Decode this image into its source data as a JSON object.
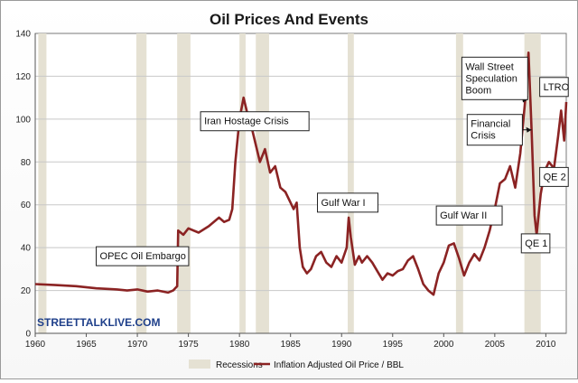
{
  "chart_data": {
    "type": "line",
    "title": "Oil Prices And Events",
    "xlabel": "",
    "ylabel": "",
    "xlim": [
      1960,
      2012
    ],
    "ylim": [
      0,
      140
    ],
    "x_ticks": [
      1960,
      1965,
      1970,
      1975,
      1980,
      1985,
      1990,
      1995,
      2000,
      2005,
      2010
    ],
    "y_ticks": [
      0,
      20,
      40,
      60,
      80,
      100,
      120,
      140
    ],
    "grid": {
      "x": false,
      "y": true
    },
    "legend": {
      "placement": "bottom",
      "items": [
        "Recessions",
        "Inflation Adjusted Oil Price / BBL"
      ]
    },
    "recessions": [
      [
        1960.3,
        1961.1
      ],
      [
        1969.9,
        1970.9
      ],
      [
        1973.9,
        1975.2
      ],
      [
        1980.0,
        1980.6
      ],
      [
        1981.6,
        1982.9
      ],
      [
        1990.6,
        1991.2
      ],
      [
        2001.2,
        2001.9
      ],
      [
        2007.9,
        2009.5
      ]
    ],
    "series": [
      {
        "name": "Inflation Adjusted Oil Price / BBL",
        "color": "#8b2323",
        "points": [
          [
            1960,
            23
          ],
          [
            1962,
            22.5
          ],
          [
            1964,
            22
          ],
          [
            1966,
            21
          ],
          [
            1968,
            20.5
          ],
          [
            1969,
            20
          ],
          [
            1970,
            20.5
          ],
          [
            1971,
            19.5
          ],
          [
            1972,
            20
          ],
          [
            1973,
            19
          ],
          [
            1973.5,
            20
          ],
          [
            1973.9,
            22
          ],
          [
            1974.0,
            48
          ],
          [
            1974.5,
            46
          ],
          [
            1975,
            49
          ],
          [
            1976,
            47
          ],
          [
            1977,
            50
          ],
          [
            1978,
            54
          ],
          [
            1978.5,
            52
          ],
          [
            1979,
            53
          ],
          [
            1979.3,
            58
          ],
          [
            1979.6,
            80
          ],
          [
            1980.0,
            100
          ],
          [
            1980.4,
            110
          ],
          [
            1980.8,
            102
          ],
          [
            1981.2,
            96
          ],
          [
            1981.5,
            90
          ],
          [
            1982,
            80
          ],
          [
            1982.5,
            86
          ],
          [
            1983,
            75
          ],
          [
            1983.5,
            78
          ],
          [
            1984,
            68
          ],
          [
            1984.5,
            66
          ],
          [
            1985,
            61
          ],
          [
            1985.3,
            58
          ],
          [
            1985.6,
            61
          ],
          [
            1985.9,
            40
          ],
          [
            1986.2,
            31
          ],
          [
            1986.6,
            28
          ],
          [
            1987,
            30
          ],
          [
            1987.5,
            36
          ],
          [
            1988,
            38
          ],
          [
            1988.5,
            33
          ],
          [
            1989,
            31
          ],
          [
            1989.5,
            36
          ],
          [
            1990,
            33
          ],
          [
            1990.5,
            40
          ],
          [
            1990.7,
            54
          ],
          [
            1990.9,
            45
          ],
          [
            1991.3,
            32
          ],
          [
            1991.7,
            36
          ],
          [
            1992,
            33
          ],
          [
            1992.5,
            36
          ],
          [
            1993,
            33
          ],
          [
            1993.5,
            29
          ],
          [
            1994,
            25
          ],
          [
            1994.5,
            28
          ],
          [
            1995,
            27
          ],
          [
            1995.5,
            29
          ],
          [
            1996,
            30
          ],
          [
            1996.5,
            34
          ],
          [
            1997,
            36
          ],
          [
            1997.5,
            30
          ],
          [
            1998,
            23
          ],
          [
            1998.5,
            20
          ],
          [
            1999,
            18
          ],
          [
            1999.5,
            28
          ],
          [
            2000,
            33
          ],
          [
            2000.5,
            41
          ],
          [
            2001,
            42
          ],
          [
            2001.5,
            35
          ],
          [
            2002,
            27
          ],
          [
            2002.5,
            33
          ],
          [
            2003,
            37
          ],
          [
            2003.5,
            34
          ],
          [
            2004,
            40
          ],
          [
            2004.5,
            48
          ],
          [
            2005,
            58
          ],
          [
            2005.5,
            70
          ],
          [
            2006,
            72
          ],
          [
            2006.5,
            78
          ],
          [
            2007,
            68
          ],
          [
            2007.5,
            84
          ],
          [
            2008.0,
            110
          ],
          [
            2008.3,
            131
          ],
          [
            2008.6,
            95
          ],
          [
            2008.9,
            55
          ],
          [
            2009.1,
            46
          ],
          [
            2009.5,
            65
          ],
          [
            2009.9,
            76
          ],
          [
            2010.3,
            80
          ],
          [
            2010.8,
            77
          ],
          [
            2011.2,
            92
          ],
          [
            2011.5,
            104
          ],
          [
            2011.8,
            90
          ],
          [
            2012,
            108
          ]
        ]
      }
    ],
    "annotations": [
      {
        "text": [
          "OPEC Oil Embargo"
        ],
        "label_at": [
          1970.5,
          36
        ],
        "points_to": null
      },
      {
        "text": [
          "Iran Hostage Crisis"
        ],
        "label_at": [
          1981.5,
          99
        ],
        "points_to": null
      },
      {
        "text": [
          "Gulf War I"
        ],
        "label_at": [
          1990.6,
          61
        ],
        "points_to": null
      },
      {
        "text": [
          "Gulf War II"
        ],
        "label_at": [
          2002.5,
          55
        ],
        "points_to": null
      },
      {
        "text": [
          "Wall Street",
          "Speculation",
          "Boom"
        ],
        "label_at": [
          2005.0,
          119
        ],
        "points_to": [
          2008.2,
          109
        ]
      },
      {
        "text": [
          "Financial",
          "Crisis"
        ],
        "label_at": [
          2005.0,
          95
        ],
        "points_to": [
          2008.6,
          95
        ]
      },
      {
        "text": [
          "LTRO"
        ],
        "label_at": [
          2010.8,
          115
        ],
        "points_to": null
      },
      {
        "text": [
          "QE 2"
        ],
        "label_at": [
          2010.8,
          73
        ],
        "points_to": null
      },
      {
        "text": [
          "QE 1"
        ],
        "label_at": [
          2009.0,
          42
        ],
        "points_to": null
      }
    ]
  },
  "watermark": "STREETTALKLIVE.COM"
}
